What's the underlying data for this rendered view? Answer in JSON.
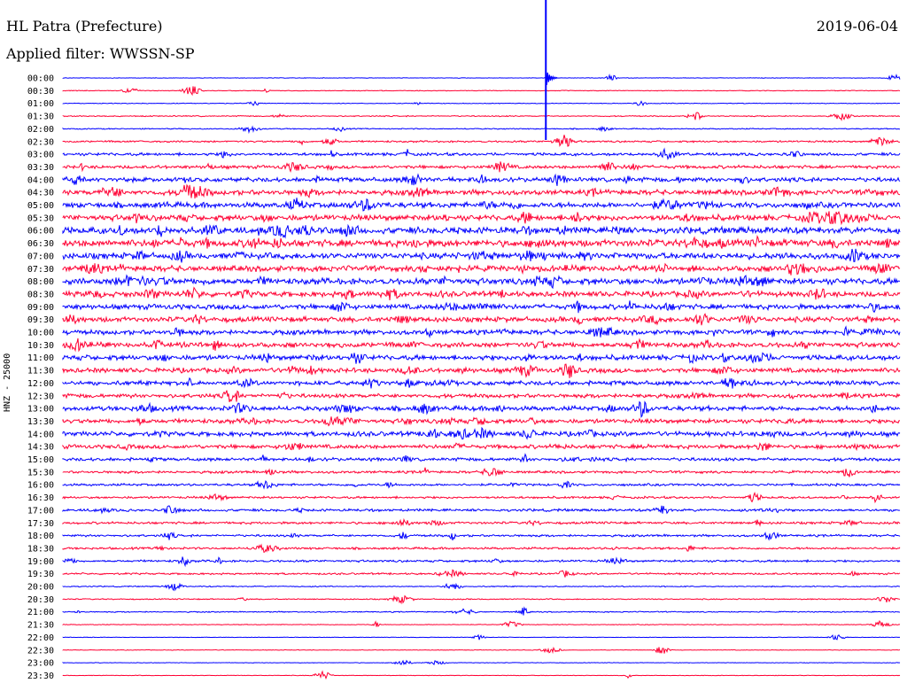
{
  "header": {
    "station": "HL Patra (Prefecture)",
    "filter": "Applied filter: WWSSN-SP",
    "date": "2019-06-04"
  },
  "chart_data": {
    "type": "line",
    "ylabel": "HNZ - 25000",
    "time_labels": [
      "00:00",
      "00:30",
      "01:00",
      "01:30",
      "02:00",
      "02:30",
      "03:00",
      "03:30",
      "04:00",
      "04:30",
      "05:00",
      "05:30",
      "06:00",
      "06:30",
      "07:00",
      "07:30",
      "08:00",
      "08:30",
      "09:00",
      "09:30",
      "10:00",
      "10:30",
      "11:00",
      "11:30",
      "12:00",
      "12:30",
      "13:00",
      "13:30",
      "14:00",
      "14:30",
      "15:00",
      "15:30",
      "16:00",
      "16:30",
      "17:00",
      "17:30",
      "18:00",
      "18:30",
      "19:00",
      "19:30",
      "20:00",
      "20:30",
      "21:00",
      "21:30",
      "22:00",
      "22:30",
      "23:00",
      "23:30"
    ],
    "noise_level": [
      0.3,
      0.4,
      0.4,
      0.6,
      0.6,
      1.0,
      1.6,
      1.8,
      2.4,
      2.8,
      3.0,
      3.2,
      3.6,
      3.8,
      3.4,
      3.2,
      3.4,
      3.0,
      2.8,
      2.8,
      2.6,
      2.8,
      2.8,
      2.6,
      2.4,
      2.2,
      2.6,
      2.4,
      2.6,
      2.2,
      1.8,
      1.4,
      1.3,
      1.2,
      1.4,
      1.3,
      1.2,
      1.2,
      1.2,
      1.0,
      0.6,
      0.6,
      0.6,
      0.4,
      0.3,
      0.3,
      0.3,
      0.3
    ],
    "event": {
      "row": 0,
      "x_fraction": 0.577,
      "label": "large event near 00:00 trace"
    },
    "colors": {
      "blue": "#0000ff",
      "red": "#ff0033"
    }
  }
}
